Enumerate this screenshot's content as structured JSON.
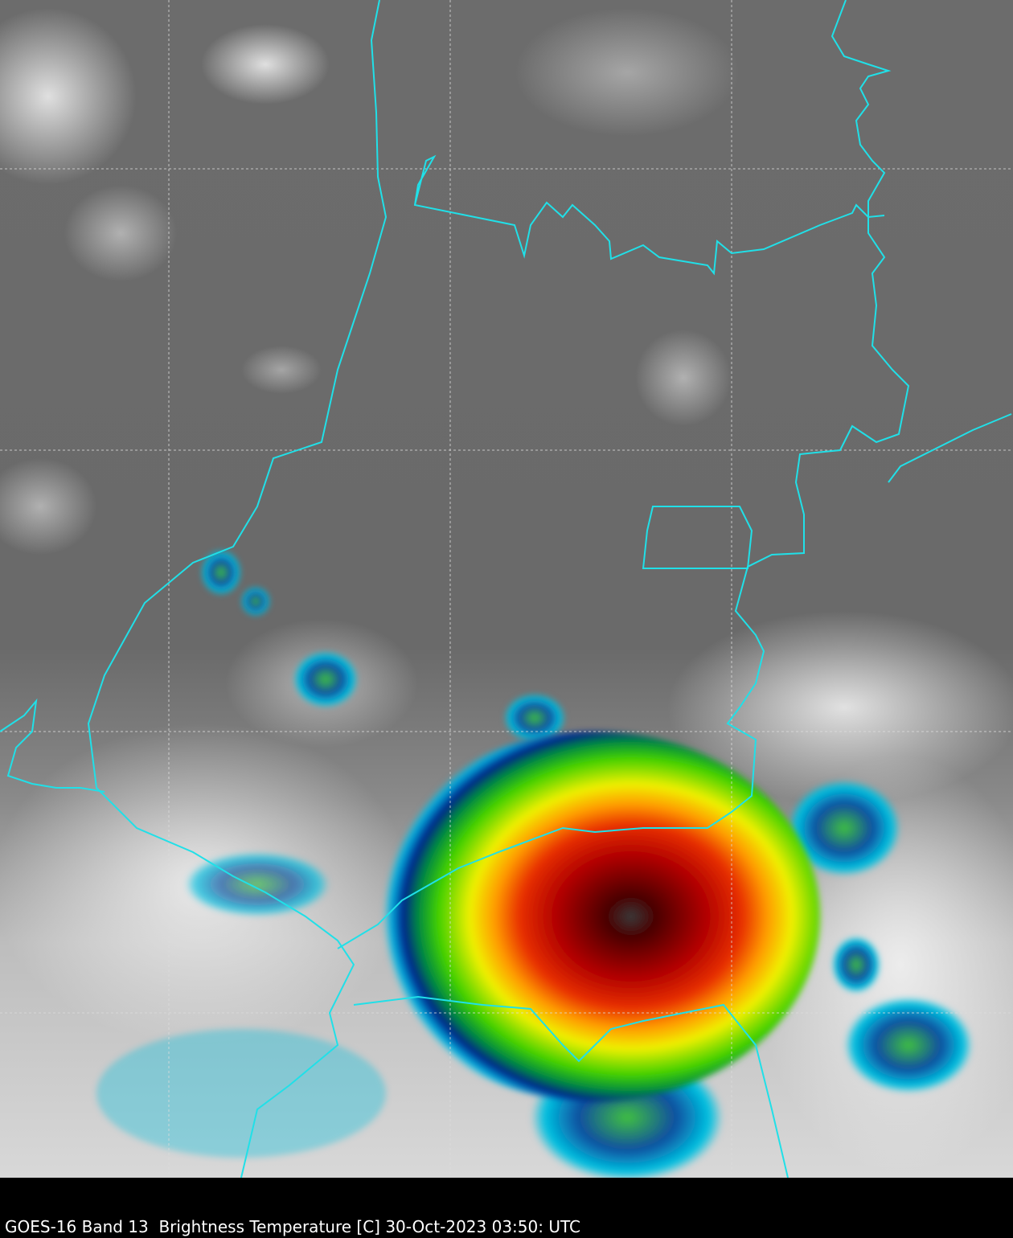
{
  "caption": "GOES-16 Band 13  Brightness Temperature [C] 30-Oct-2023 03:50: UTC"
}
